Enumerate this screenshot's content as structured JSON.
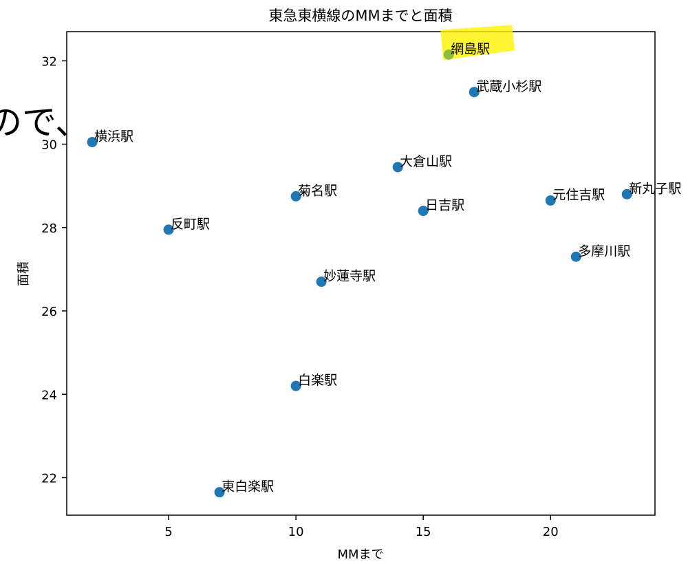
{
  "overlay_text": "ので、",
  "chart_data": {
    "type": "scatter",
    "title": "東急東横線のMMまでと面積",
    "xlabel": "MMまで",
    "ylabel": "面積",
    "xlim": [
      1.0,
      24.1
    ],
    "ylim": [
      21.1,
      32.7
    ],
    "xticks": [
      5,
      10,
      15,
      20
    ],
    "yticks": [
      22,
      24,
      26,
      28,
      30,
      32
    ],
    "grid": false,
    "point_color": "#1f77b4",
    "highlight_color": "#fff200",
    "highlight_point_color": "#8fbf3a",
    "points": [
      {
        "label": "網島駅",
        "x": 16,
        "y": 32.15,
        "highlighted": true
      },
      {
        "label": "武蔵小杉駅",
        "x": 17,
        "y": 31.25
      },
      {
        "label": "横浜駅",
        "x": 2,
        "y": 30.05
      },
      {
        "label": "大倉山駅",
        "x": 14,
        "y": 29.45
      },
      {
        "label": "菊名駅",
        "x": 10,
        "y": 28.75
      },
      {
        "label": "新丸子駅",
        "x": 23,
        "y": 28.8
      },
      {
        "label": "元住吉駅",
        "x": 20,
        "y": 28.65
      },
      {
        "label": "日吉駅",
        "x": 15,
        "y": 28.4
      },
      {
        "label": "反町駅",
        "x": 5,
        "y": 27.95
      },
      {
        "label": "多摩川駅",
        "x": 21,
        "y": 27.3
      },
      {
        "label": "妙蓮寺駅",
        "x": 11,
        "y": 26.7
      },
      {
        "label": "白楽駅",
        "x": 10,
        "y": 24.2
      },
      {
        "label": "東白楽駅",
        "x": 7,
        "y": 21.65
      }
    ]
  }
}
